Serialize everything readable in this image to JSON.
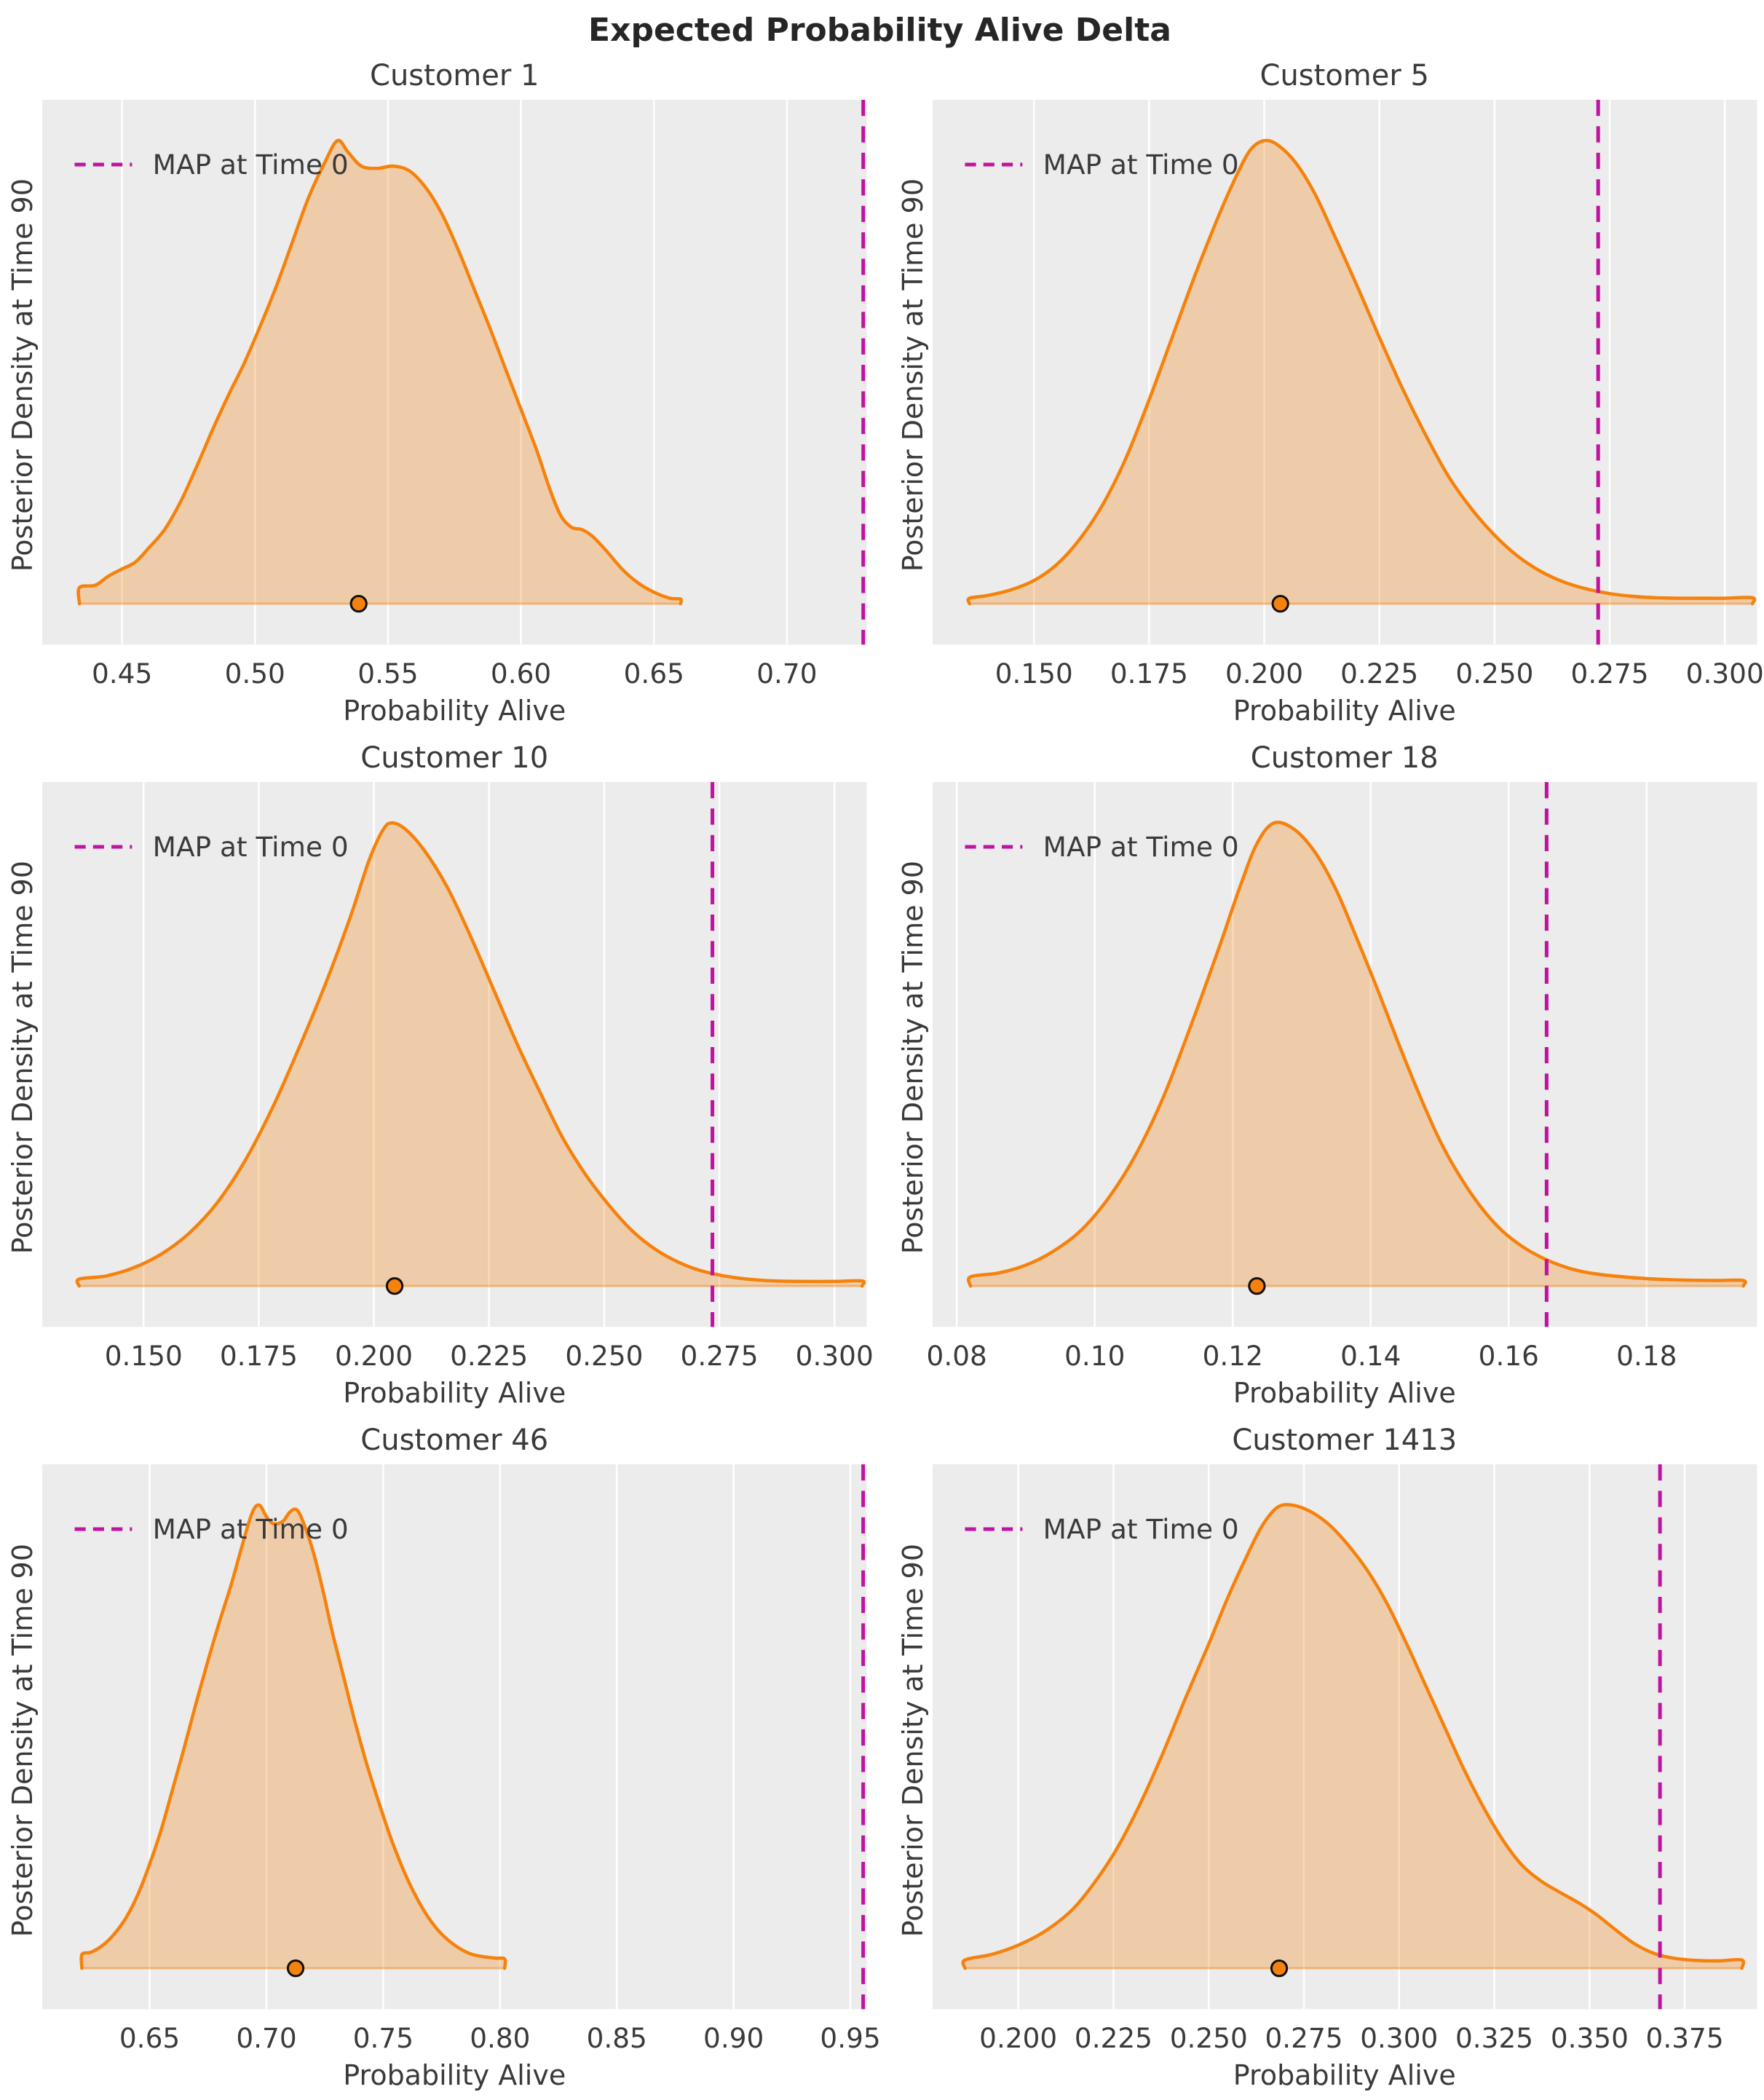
{
  "figure": {
    "title": "Expected Probability Alive Delta",
    "xlabel": "Probability Alive",
    "ylabel": "Posterior Density at Time 90",
    "legend_label": "MAP at Time 0"
  },
  "colors": {
    "density_stroke": "#f5820d",
    "density_fill": "#f5820d",
    "density_fill_opacity": 0.3,
    "baseline_opacity": 0.45,
    "map_line": "#c113a1",
    "plot_bg": "#ececec",
    "grid_line": "#ffffff",
    "text": "#3a3a3a",
    "marker_fill": "#f5820d",
    "marker_edge": "#111111"
  },
  "chart_data": [
    {
      "type": "area",
      "title": "Customer 1",
      "xlabel": "Probability Alive",
      "ylabel": "Posterior Density at Time 90",
      "legend": "MAP at Time 0",
      "x_range": [
        0.42,
        0.73
      ],
      "x_tick_values": [
        0.45,
        0.5,
        0.55,
        0.6,
        0.65,
        0.7
      ],
      "x_tick_labels": [
        "0.45",
        "0.50",
        "0.55",
        "0.60",
        "0.65",
        "0.70"
      ],
      "map_at_time_0": 0.7287,
      "marker_x": 0.539,
      "density": [
        [
          0.434,
          0.0
        ],
        [
          0.434,
          0.035
        ],
        [
          0.44,
          0.04
        ],
        [
          0.445,
          0.06
        ],
        [
          0.45,
          0.075
        ],
        [
          0.455,
          0.09
        ],
        [
          0.46,
          0.12
        ],
        [
          0.466,
          0.16
        ],
        [
          0.472,
          0.22
        ],
        [
          0.478,
          0.295
        ],
        [
          0.484,
          0.375
        ],
        [
          0.49,
          0.45
        ],
        [
          0.496,
          0.52
        ],
        [
          0.502,
          0.6
        ],
        [
          0.508,
          0.685
        ],
        [
          0.514,
          0.78
        ],
        [
          0.52,
          0.875
        ],
        [
          0.526,
          0.95
        ],
        [
          0.531,
          1.0
        ],
        [
          0.535,
          0.975
        ],
        [
          0.54,
          0.945
        ],
        [
          0.546,
          0.94
        ],
        [
          0.552,
          0.945
        ],
        [
          0.558,
          0.935
        ],
        [
          0.564,
          0.9
        ],
        [
          0.57,
          0.845
        ],
        [
          0.576,
          0.77
        ],
        [
          0.582,
          0.685
        ],
        [
          0.588,
          0.6
        ],
        [
          0.594,
          0.51
        ],
        [
          0.6,
          0.42
        ],
        [
          0.606,
          0.33
        ],
        [
          0.611,
          0.245
        ],
        [
          0.615,
          0.19
        ],
        [
          0.619,
          0.165
        ],
        [
          0.623,
          0.16
        ],
        [
          0.627,
          0.145
        ],
        [
          0.632,
          0.115
        ],
        [
          0.638,
          0.075
        ],
        [
          0.644,
          0.045
        ],
        [
          0.65,
          0.025
        ],
        [
          0.656,
          0.012
        ],
        [
          0.66,
          0.01
        ],
        [
          0.66,
          0.0
        ]
      ]
    },
    {
      "type": "area",
      "title": "Customer 5",
      "xlabel": "Probability Alive",
      "ylabel": "Posterior Density at Time 90",
      "legend": "MAP at Time 0",
      "x_range": [
        0.128,
        0.307
      ],
      "x_tick_values": [
        0.15,
        0.175,
        0.2,
        0.225,
        0.25,
        0.275,
        0.3
      ],
      "x_tick_labels": [
        "0.150",
        "0.175",
        "0.200",
        "0.225",
        "0.250",
        "0.275",
        "0.300"
      ],
      "map_at_time_0": 0.2725,
      "marker_x": 0.2035,
      "density": [
        [
          0.136,
          0.0
        ],
        [
          0.136,
          0.012
        ],
        [
          0.14,
          0.018
        ],
        [
          0.145,
          0.03
        ],
        [
          0.15,
          0.05
        ],
        [
          0.155,
          0.085
        ],
        [
          0.16,
          0.14
        ],
        [
          0.165,
          0.215
        ],
        [
          0.17,
          0.315
        ],
        [
          0.175,
          0.44
        ],
        [
          0.18,
          0.575
        ],
        [
          0.185,
          0.71
        ],
        [
          0.19,
          0.835
        ],
        [
          0.194,
          0.925
        ],
        [
          0.197,
          0.98
        ],
        [
          0.2,
          1.0
        ],
        [
          0.203,
          0.99
        ],
        [
          0.207,
          0.95
        ],
        [
          0.211,
          0.885
        ],
        [
          0.215,
          0.8
        ],
        [
          0.22,
          0.69
        ],
        [
          0.225,
          0.575
        ],
        [
          0.23,
          0.465
        ],
        [
          0.235,
          0.365
        ],
        [
          0.24,
          0.275
        ],
        [
          0.245,
          0.205
        ],
        [
          0.25,
          0.148
        ],
        [
          0.255,
          0.103
        ],
        [
          0.26,
          0.07
        ],
        [
          0.265,
          0.047
        ],
        [
          0.27,
          0.032
        ],
        [
          0.275,
          0.022
        ],
        [
          0.28,
          0.016
        ],
        [
          0.285,
          0.013
        ],
        [
          0.29,
          0.012
        ],
        [
          0.295,
          0.012
        ],
        [
          0.3,
          0.012
        ],
        [
          0.306,
          0.013
        ],
        [
          0.306,
          0.0
        ]
      ]
    },
    {
      "type": "area",
      "title": "Customer 10",
      "xlabel": "Probability Alive",
      "ylabel": "Posterior Density at Time 90",
      "legend": "MAP at Time 0",
      "x_range": [
        0.128,
        0.307
      ],
      "x_tick_values": [
        0.15,
        0.175,
        0.2,
        0.225,
        0.25,
        0.275,
        0.3
      ],
      "x_tick_labels": [
        "0.150",
        "0.175",
        "0.200",
        "0.225",
        "0.250",
        "0.275",
        "0.300"
      ],
      "map_at_time_0": 0.2735,
      "marker_x": 0.2045,
      "density": [
        [
          0.136,
          0.0
        ],
        [
          0.136,
          0.015
        ],
        [
          0.142,
          0.022
        ],
        [
          0.148,
          0.04
        ],
        [
          0.154,
          0.07
        ],
        [
          0.16,
          0.115
        ],
        [
          0.166,
          0.18
        ],
        [
          0.172,
          0.27
        ],
        [
          0.178,
          0.385
        ],
        [
          0.184,
          0.52
        ],
        [
          0.19,
          0.665
        ],
        [
          0.195,
          0.8
        ],
        [
          0.199,
          0.92
        ],
        [
          0.202,
          0.985
        ],
        [
          0.204,
          1.0
        ],
        [
          0.207,
          0.985
        ],
        [
          0.211,
          0.94
        ],
        [
          0.216,
          0.86
        ],
        [
          0.221,
          0.755
        ],
        [
          0.226,
          0.64
        ],
        [
          0.231,
          0.525
        ],
        [
          0.236,
          0.42
        ],
        [
          0.241,
          0.32
        ],
        [
          0.246,
          0.24
        ],
        [
          0.251,
          0.175
        ],
        [
          0.256,
          0.12
        ],
        [
          0.261,
          0.08
        ],
        [
          0.266,
          0.052
        ],
        [
          0.271,
          0.033
        ],
        [
          0.276,
          0.022
        ],
        [
          0.281,
          0.015
        ],
        [
          0.287,
          0.011
        ],
        [
          0.293,
          0.01
        ],
        [
          0.3,
          0.01
        ],
        [
          0.306,
          0.011
        ],
        [
          0.306,
          0.0
        ]
      ]
    },
    {
      "type": "area",
      "title": "Customer 18",
      "xlabel": "Probability Alive",
      "ylabel": "Posterior Density at Time 90",
      "legend": "MAP at Time 0",
      "x_range": [
        0.0765,
        0.196
      ],
      "x_tick_values": [
        0.08,
        0.1,
        0.12,
        0.14,
        0.16,
        0.18
      ],
      "x_tick_labels": [
        "0.08",
        "0.10",
        "0.12",
        "0.14",
        "0.16",
        "0.18"
      ],
      "map_at_time_0": 0.1655,
      "marker_x": 0.1235,
      "density": [
        [
          0.082,
          0.0
        ],
        [
          0.082,
          0.02
        ],
        [
          0.086,
          0.028
        ],
        [
          0.09,
          0.045
        ],
        [
          0.094,
          0.075
        ],
        [
          0.098,
          0.12
        ],
        [
          0.102,
          0.19
        ],
        [
          0.106,
          0.285
        ],
        [
          0.11,
          0.41
        ],
        [
          0.114,
          0.565
        ],
        [
          0.118,
          0.73
        ],
        [
          0.121,
          0.86
        ],
        [
          0.1235,
          0.955
        ],
        [
          0.126,
          1.0
        ],
        [
          0.129,
          0.985
        ],
        [
          0.132,
          0.935
        ],
        [
          0.135,
          0.855
        ],
        [
          0.138,
          0.75
        ],
        [
          0.141,
          0.64
        ],
        [
          0.144,
          0.525
        ],
        [
          0.147,
          0.415
        ],
        [
          0.15,
          0.315
        ],
        [
          0.153,
          0.235
        ],
        [
          0.156,
          0.17
        ],
        [
          0.159,
          0.12
        ],
        [
          0.162,
          0.085
        ],
        [
          0.165,
          0.06
        ],
        [
          0.168,
          0.042
        ],
        [
          0.171,
          0.03
        ],
        [
          0.175,
          0.022
        ],
        [
          0.18,
          0.016
        ],
        [
          0.185,
          0.013
        ],
        [
          0.19,
          0.012
        ],
        [
          0.194,
          0.012
        ],
        [
          0.194,
          0.0
        ]
      ]
    },
    {
      "type": "area",
      "title": "Customer 46",
      "xlabel": "Probability Alive",
      "ylabel": "Posterior Density at Time 90",
      "legend": "MAP at Time 0",
      "x_range": [
        0.604,
        0.957
      ],
      "x_tick_values": [
        0.65,
        0.7,
        0.75,
        0.8,
        0.85,
        0.9,
        0.95
      ],
      "x_tick_labels": [
        "0.65",
        "0.70",
        "0.75",
        "0.80",
        "0.85",
        "0.90",
        "0.95"
      ],
      "map_at_time_0": 0.9555,
      "marker_x": 0.7125,
      "density": [
        [
          0.621,
          0.0
        ],
        [
          0.621,
          0.03
        ],
        [
          0.625,
          0.035
        ],
        [
          0.63,
          0.05
        ],
        [
          0.635,
          0.075
        ],
        [
          0.64,
          0.11
        ],
        [
          0.645,
          0.16
        ],
        [
          0.65,
          0.225
        ],
        [
          0.655,
          0.3
        ],
        [
          0.66,
          0.39
        ],
        [
          0.665,
          0.48
        ],
        [
          0.67,
          0.575
        ],
        [
          0.675,
          0.665
        ],
        [
          0.68,
          0.75
        ],
        [
          0.685,
          0.83
        ],
        [
          0.69,
          0.92
        ],
        [
          0.694,
          0.985
        ],
        [
          0.697,
          1.0
        ],
        [
          0.7,
          0.975
        ],
        [
          0.703,
          0.96
        ],
        [
          0.707,
          0.965
        ],
        [
          0.71,
          0.985
        ],
        [
          0.713,
          0.99
        ],
        [
          0.716,
          0.96
        ],
        [
          0.72,
          0.9
        ],
        [
          0.724,
          0.82
        ],
        [
          0.728,
          0.73
        ],
        [
          0.733,
          0.63
        ],
        [
          0.738,
          0.53
        ],
        [
          0.743,
          0.44
        ],
        [
          0.748,
          0.36
        ],
        [
          0.753,
          0.285
        ],
        [
          0.758,
          0.22
        ],
        [
          0.763,
          0.165
        ],
        [
          0.768,
          0.12
        ],
        [
          0.773,
          0.085
        ],
        [
          0.778,
          0.06
        ],
        [
          0.783,
          0.042
        ],
        [
          0.788,
          0.03
        ],
        [
          0.793,
          0.025
        ],
        [
          0.798,
          0.022
        ],
        [
          0.802,
          0.02
        ],
        [
          0.802,
          0.0
        ]
      ]
    },
    {
      "type": "area",
      "title": "Customer 1413",
      "xlabel": "Probability Alive",
      "ylabel": "Posterior Density at Time 90",
      "legend": "MAP at Time 0",
      "x_range": [
        0.1775,
        0.394
      ],
      "x_tick_values": [
        0.2,
        0.225,
        0.25,
        0.275,
        0.3,
        0.325,
        0.35,
        0.375
      ],
      "x_tick_labels": [
        "0.200",
        "0.225",
        "0.250",
        "0.275",
        "0.300",
        "0.325",
        "0.350",
        "0.375"
      ],
      "map_at_time_0": 0.3685,
      "marker_x": 0.2685,
      "density": [
        [
          0.186,
          0.0
        ],
        [
          0.186,
          0.018
        ],
        [
          0.193,
          0.03
        ],
        [
          0.2,
          0.05
        ],
        [
          0.207,
          0.08
        ],
        [
          0.214,
          0.125
        ],
        [
          0.22,
          0.185
        ],
        [
          0.226,
          0.26
        ],
        [
          0.232,
          0.355
        ],
        [
          0.238,
          0.465
        ],
        [
          0.244,
          0.585
        ],
        [
          0.25,
          0.7
        ],
        [
          0.255,
          0.8
        ],
        [
          0.26,
          0.89
        ],
        [
          0.264,
          0.955
        ],
        [
          0.268,
          0.995
        ],
        [
          0.272,
          1.0
        ],
        [
          0.277,
          0.985
        ],
        [
          0.282,
          0.955
        ],
        [
          0.287,
          0.91
        ],
        [
          0.292,
          0.855
        ],
        [
          0.297,
          0.785
        ],
        [
          0.302,
          0.7
        ],
        [
          0.307,
          0.61
        ],
        [
          0.312,
          0.52
        ],
        [
          0.317,
          0.43
        ],
        [
          0.322,
          0.35
        ],
        [
          0.327,
          0.28
        ],
        [
          0.332,
          0.225
        ],
        [
          0.337,
          0.19
        ],
        [
          0.342,
          0.165
        ],
        [
          0.347,
          0.142
        ],
        [
          0.352,
          0.115
        ],
        [
          0.357,
          0.082
        ],
        [
          0.362,
          0.052
        ],
        [
          0.367,
          0.032
        ],
        [
          0.372,
          0.022
        ],
        [
          0.378,
          0.017
        ],
        [
          0.384,
          0.016
        ],
        [
          0.39,
          0.018
        ],
        [
          0.39,
          0.0
        ]
      ]
    }
  ]
}
